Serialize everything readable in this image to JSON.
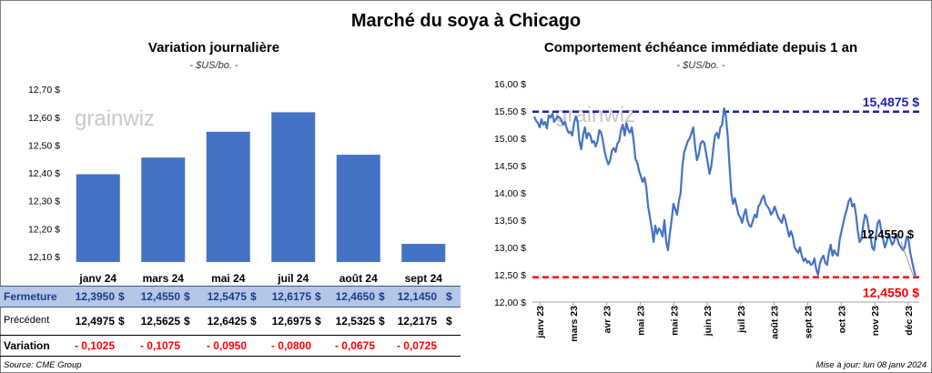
{
  "title": "Marché du soya à Chicago",
  "left_panel": {
    "title": "Variation journalière",
    "unit": "- $US/bo. -"
  },
  "right_panel": {
    "title": "Comportement échéance immédiate depuis 1 an",
    "unit": "- $US/bo. -"
  },
  "watermark": "grainwiz",
  "chart_data": [
    {
      "type": "bar",
      "categories": [
        "janv 24",
        "mars 24",
        "mai 24",
        "juil 24",
        "août 24",
        "sept 24"
      ],
      "values": [
        12.395,
        12.455,
        12.5475,
        12.6175,
        12.465,
        12.145
      ],
      "ylim": [
        12.08,
        12.72
      ],
      "yticks": [
        "12,10 $",
        "12,20 $",
        "12,30 $",
        "12,40 $",
        "12,50 $",
        "12,60 $",
        "12,70 $"
      ],
      "ytick_values": [
        12.1,
        12.2,
        12.3,
        12.4,
        12.5,
        12.6,
        12.7
      ],
      "color": "#4472c4",
      "grid": false
    },
    {
      "type": "line",
      "x_labels": [
        "janv 23",
        "mars 23",
        "avr 23",
        "mai 23",
        "mai 23",
        "juin 23",
        "juil 23",
        "août 23",
        "sept 23",
        "oct 23",
        "nov 23",
        "déc 23"
      ],
      "ylim": [
        12.0,
        16.0
      ],
      "yticks": [
        "12,00 $",
        "12,50 $",
        "13,00 $",
        "13,50 $",
        "14,00 $",
        "14,50 $",
        "15,00 $",
        "15,50 $",
        "16,00 $"
      ],
      "ytick_values": [
        12.0,
        12.5,
        13.0,
        13.5,
        14.0,
        14.5,
        15.0,
        15.5,
        16.0
      ],
      "values": [
        15.4,
        15.32,
        15.28,
        15.2,
        15.35,
        15.25,
        15.3,
        15.18,
        15.42,
        15.38,
        15.45,
        15.3,
        15.35,
        15.4,
        15.38,
        15.33,
        15.25,
        15.3,
        15.18,
        15.1,
        15.12,
        15.05,
        15.28,
        15.4,
        15.3,
        14.95,
        14.8,
        15.05,
        15.2,
        15.0,
        15.1,
        15.05,
        14.92,
        14.95,
        14.85,
        14.95,
        15.15,
        15.1,
        14.95,
        14.75,
        14.62,
        14.52,
        14.6,
        14.78,
        14.82,
        14.75,
        14.9,
        14.95,
        15.15,
        15.25,
        15.05,
        15.28,
        15.15,
        15.1,
        15.2,
        14.95,
        14.62,
        14.55,
        14.4,
        14.3,
        14.2,
        14.28,
        14.1,
        13.75,
        13.55,
        13.35,
        13.1,
        13.4,
        13.25,
        13.35,
        13.3,
        13.2,
        13.5,
        13.1,
        12.95,
        13.25,
        13.5,
        13.8,
        13.7,
        13.6,
        13.85,
        14.0,
        14.5,
        14.75,
        14.85,
        14.95,
        15.0,
        15.1,
        15.2,
        14.85,
        14.6,
        14.7,
        14.9,
        14.95,
        14.92,
        14.75,
        14.55,
        14.35,
        14.5,
        14.8,
        15.05,
        15.1,
        15.0,
        15.2,
        15.25,
        15.55,
        15.42,
        15.05,
        14.5,
        14.0,
        13.8,
        13.9,
        13.75,
        13.6,
        13.55,
        13.45,
        13.6,
        13.7,
        13.5,
        13.4,
        13.38,
        13.5,
        13.6,
        13.55,
        13.75,
        13.8,
        13.9,
        13.95,
        13.8,
        13.75,
        13.7,
        13.6,
        13.65,
        13.75,
        13.65,
        13.55,
        13.5,
        13.45,
        13.6,
        13.5,
        13.35,
        13.2,
        13.3,
        13.2,
        13.0,
        12.95,
        12.9,
        13.0,
        12.85,
        12.75,
        12.8,
        12.72,
        12.75,
        12.68,
        12.7,
        12.8,
        12.6,
        12.5,
        12.7,
        12.8,
        12.85,
        12.72,
        12.68,
        12.9,
        13.05,
        12.85,
        12.95,
        12.88,
        12.85,
        13.15,
        13.3,
        13.45,
        13.6,
        13.7,
        13.85,
        13.9,
        13.75,
        13.8,
        13.6,
        13.3,
        13.1,
        13.15,
        13.4,
        13.6,
        13.55,
        13.35,
        13.2,
        13.0,
        12.95,
        13.2,
        13.45,
        13.5,
        13.3,
        13.15,
        13.0,
        13.1,
        13.25,
        13.15,
        13.05,
        13.1,
        13.25,
        13.15,
        13.05,
        13.0,
        12.95,
        13.0,
        13.2,
        13.15,
        12.92,
        12.75,
        12.6,
        12.455
      ],
      "hlines": [
        {
          "value": 15.4875,
          "label": "15,4875 $",
          "color": "#1f1fa8"
        },
        {
          "value": 12.455,
          "label": "12,4550 $",
          "color": "#ff0000"
        }
      ],
      "last_label": "12,4550 $",
      "color": "#4472c4",
      "grid": false
    }
  ],
  "table": {
    "rows": [
      {
        "label": "Fermeture",
        "values": [
          "12,3950",
          "12,4550",
          "12,5475",
          "12,6175",
          "12,4650",
          "12,1450"
        ],
        "suffix": "$"
      },
      {
        "label": "Précédent",
        "values": [
          "12,4975",
          "12,5625",
          "12,6425",
          "12,6975",
          "12,5325",
          "12,2175"
        ],
        "suffix": "$"
      },
      {
        "label": "Variation",
        "values": [
          "- 0,1025",
          "- 0,1075",
          "- 0,0950",
          "- 0,0800",
          "- 0,0675",
          "- 0,0725"
        ],
        "suffix": ""
      }
    ]
  },
  "footer": {
    "source": "Source: CME Group",
    "updated": "Mise à jour: lun 08 janv 2024"
  }
}
